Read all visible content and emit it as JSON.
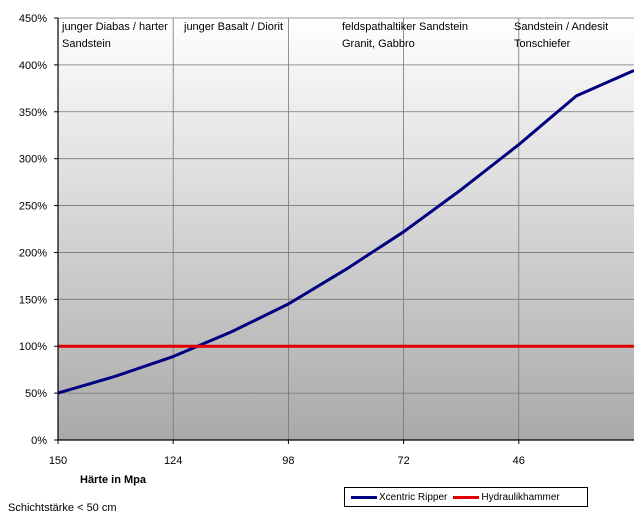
{
  "chart_data": {
    "type": "line",
    "title": "",
    "xlabel": "Härte in Mpa",
    "ylabel": "",
    "x_ticks": [
      150,
      124,
      98,
      72,
      46
    ],
    "xlim": [
      150,
      20
    ],
    "ylim": [
      0,
      450
    ],
    "y_ticks": [
      "0%",
      "50%",
      "100%",
      "150%",
      "200%",
      "250%",
      "300%",
      "350%",
      "400%",
      "450%"
    ],
    "y_tick_values": [
      0,
      50,
      100,
      150,
      200,
      250,
      300,
      350,
      400,
      450
    ],
    "grid": true,
    "legend_position": "bottom-right",
    "series": [
      {
        "name": "Xcentric Ripper",
        "color": "#000080",
        "x": [
          150,
          137,
          124,
          111,
          98,
          85,
          72,
          59,
          46,
          33,
          20
        ],
        "y": [
          50,
          68,
          89,
          115,
          145,
          182,
          222,
          267,
          315,
          367,
          394
        ]
      },
      {
        "name": "Hydraulikhammer",
        "color": "#e00000",
        "x": [
          150,
          20
        ],
        "y": [
          100,
          100
        ]
      }
    ],
    "zones": [
      {
        "line1": "junger Diabas / harter",
        "line2": "Sandstein"
      },
      {
        "line1": "junger Basalt / Diorit",
        "line2": ""
      },
      {
        "line1": "feldspathaltiker Sandstein",
        "line2": "Granit, Gabbro"
      },
      {
        "line1": "Sandstein / Andesit",
        "line2": "Tonschiefer"
      }
    ]
  },
  "footnote": "Schichtstärke < 50 cm"
}
